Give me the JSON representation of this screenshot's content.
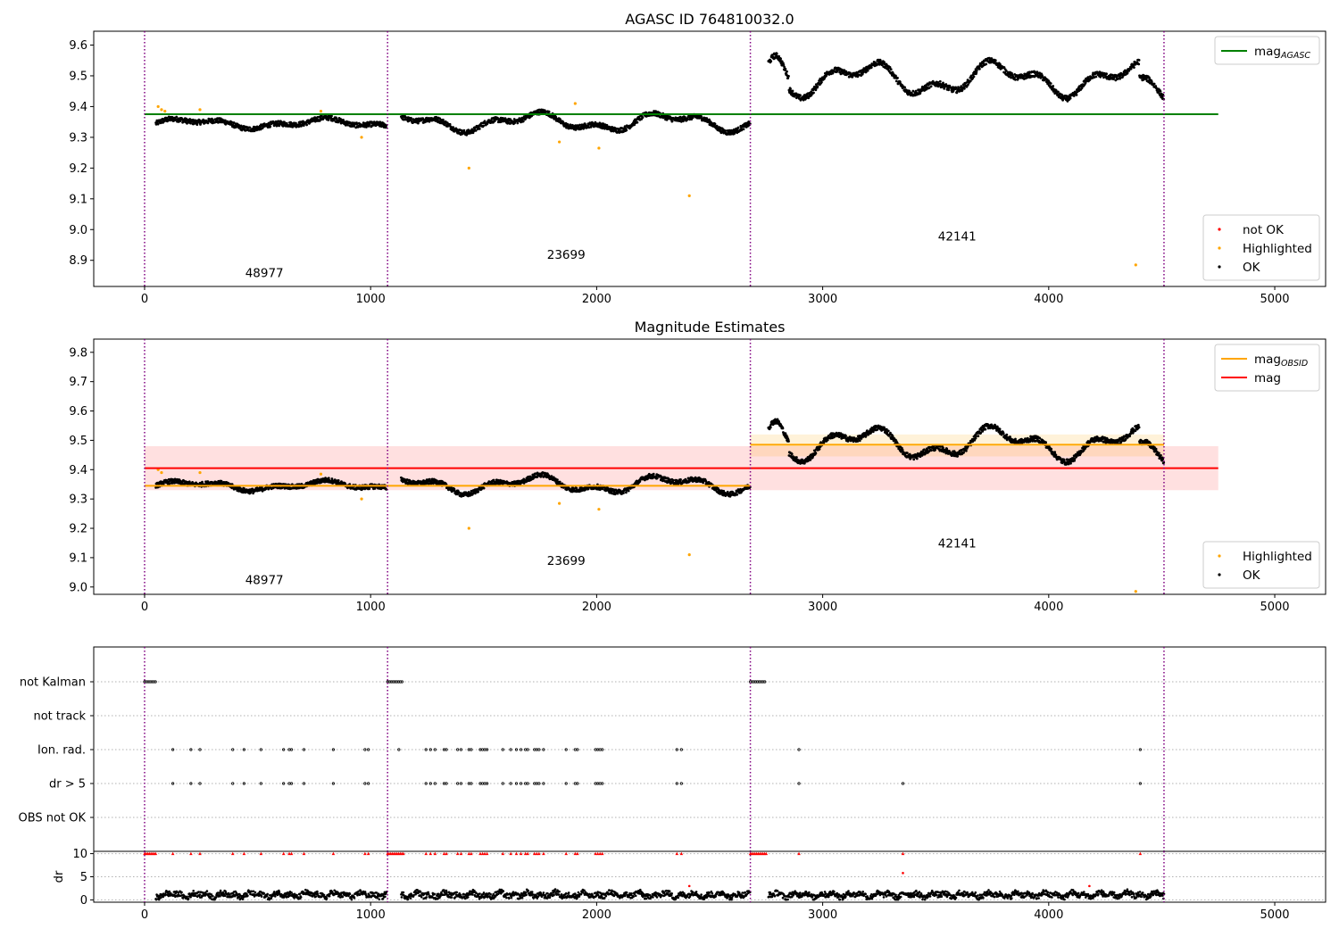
{
  "chart_data": [
    {
      "type": "scatter",
      "title": "AGASC ID 764810032.0",
      "xlim": [
        -225,
        5225
      ],
      "ylim": [
        8.815,
        9.645
      ],
      "xticks": [
        0,
        1000,
        2000,
        3000,
        4000,
        5000
      ],
      "yticks": [
        8.9,
        9.0,
        9.1,
        9.2,
        9.3,
        9.4,
        9.5,
        9.6
      ],
      "xtick_labels": [
        "0",
        "1000",
        "2000",
        "3000",
        "4000",
        "5000"
      ],
      "ytick_labels": [
        "8.9",
        "9.0",
        "9.1",
        "9.2",
        "9.3",
        "9.4",
        "9.5",
        "9.6"
      ],
      "obs_boundaries": [
        0,
        1075,
        2680,
        4510
      ],
      "segments": [
        {
          "x0": 50,
          "x1": 1070,
          "base": 9.345,
          "amp": 0.012,
          "spread": 0.008
        },
        {
          "x0": 1135,
          "x1": 2680,
          "base": 9.35,
          "amp": 0.022,
          "spread": 0.008
        },
        {
          "x0": 2760,
          "x1": 4510,
          "base": 9.49,
          "amp": 0.04,
          "spread": 0.009
        }
      ],
      "obsid_labels": [
        {
          "text": "48977",
          "x": 530,
          "y": 8.845
        },
        {
          "text": "23699",
          "x": 1865,
          "y": 8.905
        },
        {
          "text": "42141",
          "x": 3595,
          "y": 8.965
        }
      ],
      "highlighted_points": [
        [
          60,
          9.4
        ],
        [
          75,
          9.39
        ],
        [
          90,
          9.385
        ],
        [
          245,
          9.39
        ],
        [
          780,
          9.385
        ],
        [
          960,
          9.3
        ],
        [
          1435,
          9.2
        ],
        [
          1835,
          9.285
        ],
        [
          1905,
          9.41
        ],
        [
          2010,
          9.265
        ],
        [
          2410,
          9.11
        ],
        [
          4385,
          8.885
        ]
      ],
      "lines": [
        {
          "name": "mag_AGASC",
          "y": 9.375,
          "x0": 0,
          "x1": 4750,
          "color": "#008000"
        }
      ],
      "legends": [
        {
          "position": "upper-right",
          "entries": [
            {
              "label": "mag",
              "sub": "AGASC",
              "kind": "line",
              "color": "#008000"
            }
          ]
        },
        {
          "position": "lower-right",
          "entries": [
            {
              "label": "not OK",
              "kind": "dot",
              "color": "#ff0000"
            },
            {
              "label": "Highlighted",
              "kind": "dot",
              "color": "#ffa500"
            },
            {
              "label": "OK",
              "kind": "dot",
              "color": "#000000"
            }
          ]
        }
      ]
    },
    {
      "type": "scatter",
      "title": "Magnitude Estimates",
      "xlim": [
        -225,
        5225
      ],
      "ylim": [
        8.975,
        9.845
      ],
      "xticks": [
        0,
        1000,
        2000,
        3000,
        4000,
        5000
      ],
      "yticks": [
        9.0,
        9.1,
        9.2,
        9.3,
        9.4,
        9.5,
        9.6,
        9.7,
        9.8
      ],
      "xtick_labels": [
        "0",
        "1000",
        "2000",
        "3000",
        "4000",
        "5000"
      ],
      "ytick_labels": [
        "9.0",
        "9.1",
        "9.2",
        "9.3",
        "9.4",
        "9.5",
        "9.6",
        "9.7",
        "9.8"
      ],
      "obs_boundaries": [
        0,
        1075,
        2680,
        4510
      ],
      "segments": [
        {
          "x0": 50,
          "x1": 1070,
          "base": 9.345,
          "amp": 0.012,
          "spread": 0.008
        },
        {
          "x0": 1135,
          "x1": 2680,
          "base": 9.35,
          "amp": 0.022,
          "spread": 0.008
        },
        {
          "x0": 2760,
          "x1": 4510,
          "base": 9.49,
          "amp": 0.04,
          "spread": 0.009
        }
      ],
      "obsid_labels": [
        {
          "text": "48977",
          "x": 530,
          "y": 9.01
        },
        {
          "text": "23699",
          "x": 1865,
          "y": 9.075
        },
        {
          "text": "42141",
          "x": 3595,
          "y": 9.135
        }
      ],
      "highlighted_points": [
        [
          60,
          9.4
        ],
        [
          75,
          9.39
        ],
        [
          245,
          9.39
        ],
        [
          780,
          9.385
        ],
        [
          960,
          9.3
        ],
        [
          1435,
          9.2
        ],
        [
          1835,
          9.285
        ],
        [
          2010,
          9.265
        ],
        [
          2410,
          9.11
        ],
        [
          4385,
          8.985
        ]
      ],
      "bands": [
        {
          "x0": 0,
          "x1": 4750,
          "y0": 9.33,
          "y1": 9.48,
          "color": "#ff0000",
          "opacity": 0.12
        },
        {
          "x0": 2680,
          "x1": 4510,
          "y0": 9.445,
          "y1": 9.52,
          "color": "#ffa500",
          "opacity": 0.15
        }
      ],
      "lines": [
        {
          "name": "mag",
          "y": 9.405,
          "x0": 0,
          "x1": 4750,
          "color": "#ff0000"
        },
        {
          "name": "mag_OBSID",
          "y": 9.345,
          "x0": 0,
          "x1": 2680,
          "color": "#ffa500"
        },
        {
          "name": "mag_OBSID",
          "y": 9.485,
          "x0": 2680,
          "x1": 4510,
          "color": "#ffa500"
        }
      ],
      "legends": [
        {
          "position": "upper-right",
          "entries": [
            {
              "label": "mag",
              "sub": "OBSID",
              "kind": "line",
              "color": "#ffa500"
            },
            {
              "label": "mag",
              "kind": "line",
              "color": "#ff0000"
            }
          ]
        },
        {
          "position": "lower-right",
          "entries": [
            {
              "label": "Highlighted",
              "kind": "dot",
              "color": "#ffa500"
            },
            {
              "label": "OK",
              "kind": "dot",
              "color": "#000000"
            }
          ]
        }
      ]
    },
    {
      "type": "scatter",
      "xlim": [
        -225,
        5225
      ],
      "flag_rows": [
        "not Kalman",
        "not track",
        "Ion. rad.",
        "dr > 5",
        "OBS not OK"
      ],
      "flags": {
        "not Kalman": [
          [
            0,
            50
          ],
          [
            1075,
            1145
          ],
          [
            2680,
            2750
          ]
        ],
        "not track": [],
        "Ion. rad.": [
          125,
          205,
          245,
          390,
          440,
          515,
          615,
          640,
          650,
          705,
          835,
          975,
          990,
          1125,
          1245,
          1265,
          1285,
          1325,
          1335,
          1385,
          1400,
          1435,
          1445,
          1485,
          1495,
          1505,
          1515,
          1585,
          1620,
          1645,
          1665,
          1685,
          1695,
          1725,
          1735,
          1745,
          1765,
          1865,
          1905,
          1915,
          1995,
          2005,
          2015,
          2025,
          2355,
          2375,
          2895,
          4405
        ],
        "dr > 5": [
          125,
          205,
          245,
          390,
          440,
          515,
          615,
          640,
          650,
          705,
          835,
          975,
          990,
          1245,
          1265,
          1285,
          1325,
          1335,
          1385,
          1400,
          1435,
          1445,
          1485,
          1495,
          1505,
          1515,
          1585,
          1620,
          1645,
          1665,
          1685,
          1695,
          1725,
          1735,
          1745,
          1765,
          1865,
          1905,
          1915,
          1995,
          2005,
          2015,
          2025,
          2355,
          2375,
          2895,
          3355,
          4405
        ],
        "OBS not OK": []
      }
    },
    {
      "type": "scatter",
      "ylabel": "dr",
      "xlim": [
        -225,
        5225
      ],
      "ylim": [
        -0.5,
        10.5
      ],
      "yticks": [
        0,
        5,
        10
      ],
      "ytick_labels": [
        "0",
        "5",
        "10"
      ],
      "xticks": [
        0,
        1000,
        2000,
        3000,
        4000,
        5000
      ],
      "xtick_labels": [
        "0",
        "1000",
        "2000",
        "3000",
        "4000",
        "5000"
      ],
      "obs_boundaries": [
        0,
        1075,
        2680,
        4510
      ],
      "dr_segments": [
        [
          50,
          1070
        ],
        [
          1135,
          2680
        ],
        [
          2760,
          4510
        ]
      ],
      "capped_value": 10,
      "outliers": [
        [
          2410,
          3.0
        ],
        [
          3355,
          5.8
        ],
        [
          4180,
          3.0
        ]
      ]
    }
  ]
}
